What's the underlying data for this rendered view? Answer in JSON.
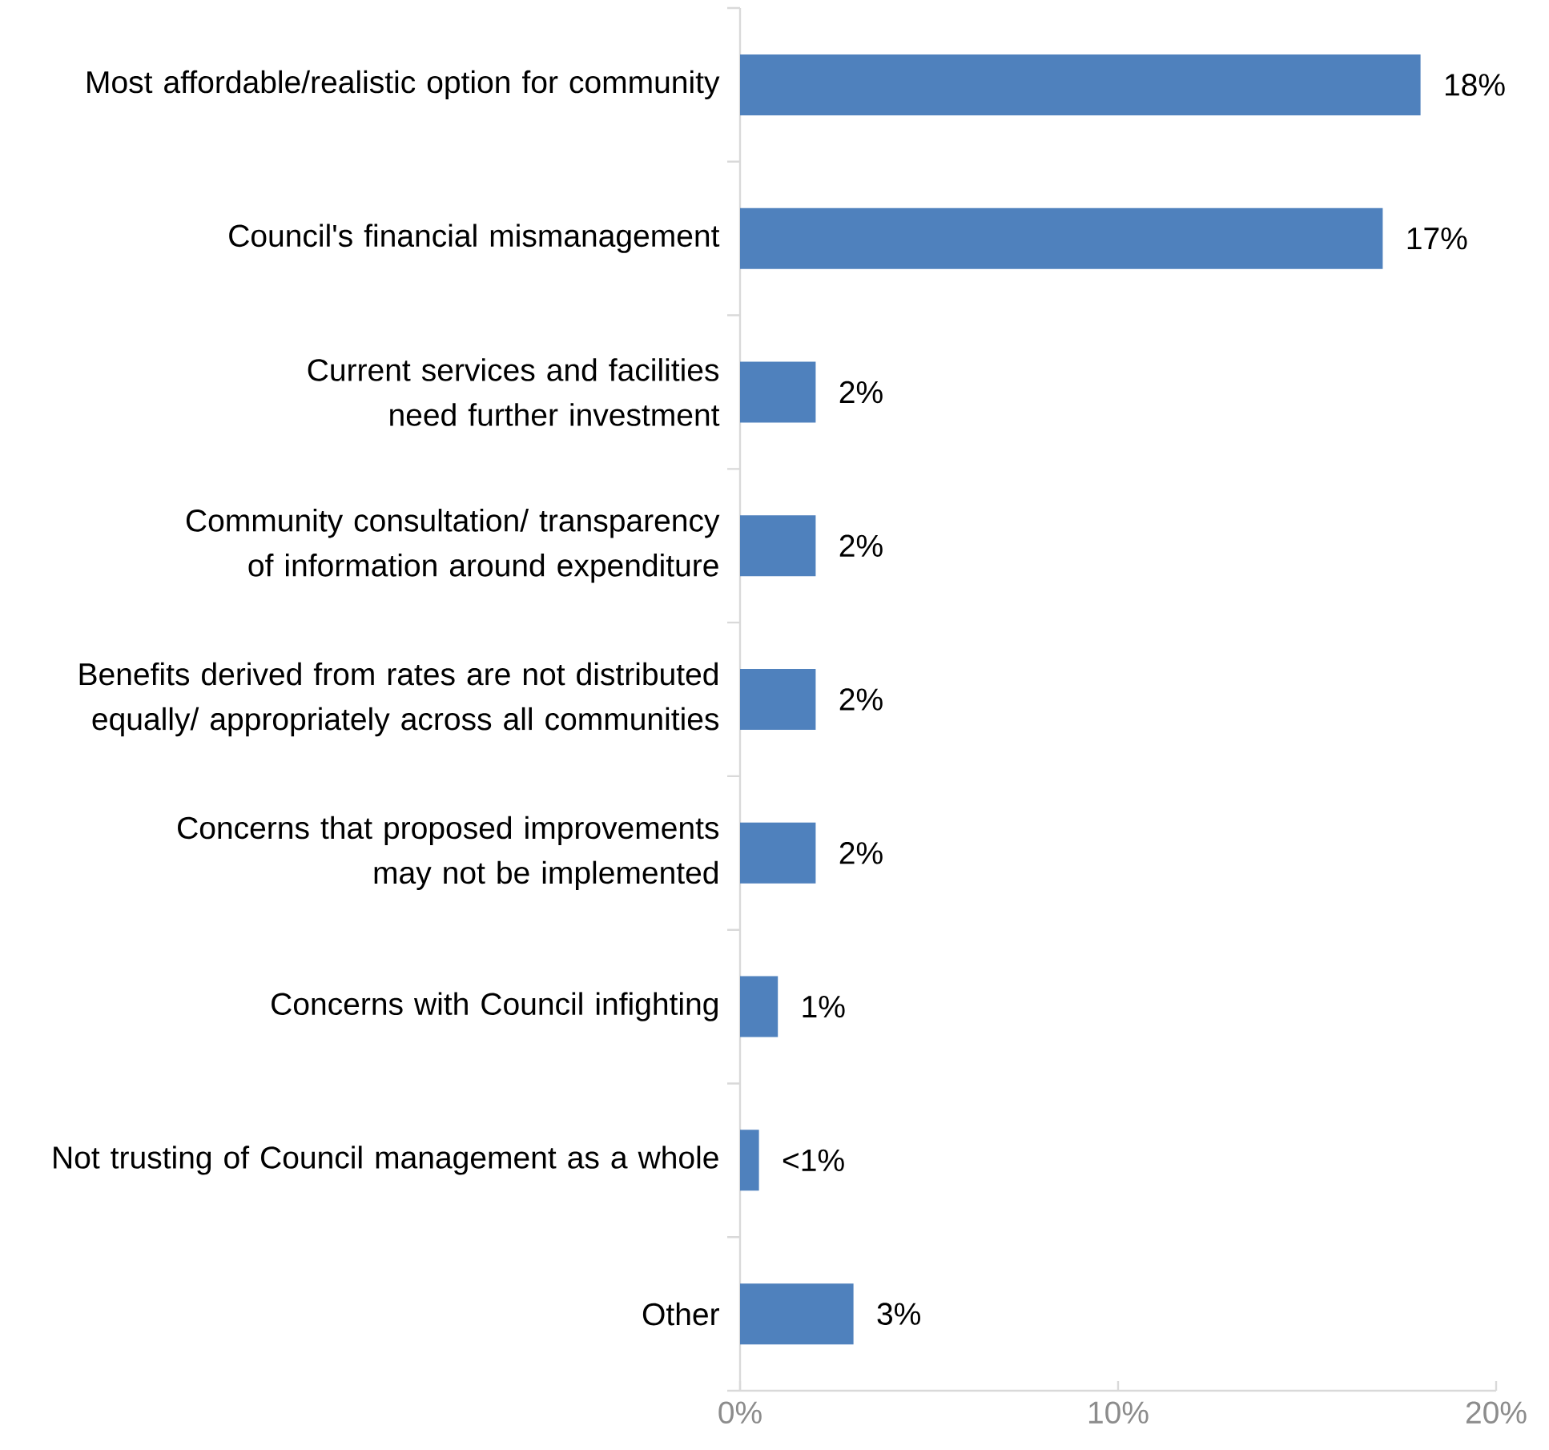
{
  "chart_data": {
    "type": "bar",
    "orientation": "horizontal",
    "categories": [
      "Most affordable/realistic option for community",
      "Council's financial mismanagement",
      "Current services and facilities need further investment",
      "Community consultation/ transparency of information around expenditure",
      "Benefits derived from rates are not distributed equally/ appropriately across all communities",
      "Concerns that proposed improvements may not be implemented",
      "Concerns with Council infighting",
      "Not trusting of Council management as a whole",
      "Other"
    ],
    "values": [
      18,
      17,
      2,
      2,
      2,
      2,
      1,
      0.5,
      3
    ],
    "value_labels": [
      "18%",
      "17%",
      "2%",
      "2%",
      "2%",
      "2%",
      "1%",
      "<1%",
      "3%"
    ],
    "color": "#4f81bd",
    "xlim": [
      0,
      20
    ],
    "xticks": [
      {
        "value": 0,
        "label": "0%"
      },
      {
        "value": 10,
        "label": "10%"
      },
      {
        "value": 20,
        "label": "20%"
      }
    ]
  }
}
